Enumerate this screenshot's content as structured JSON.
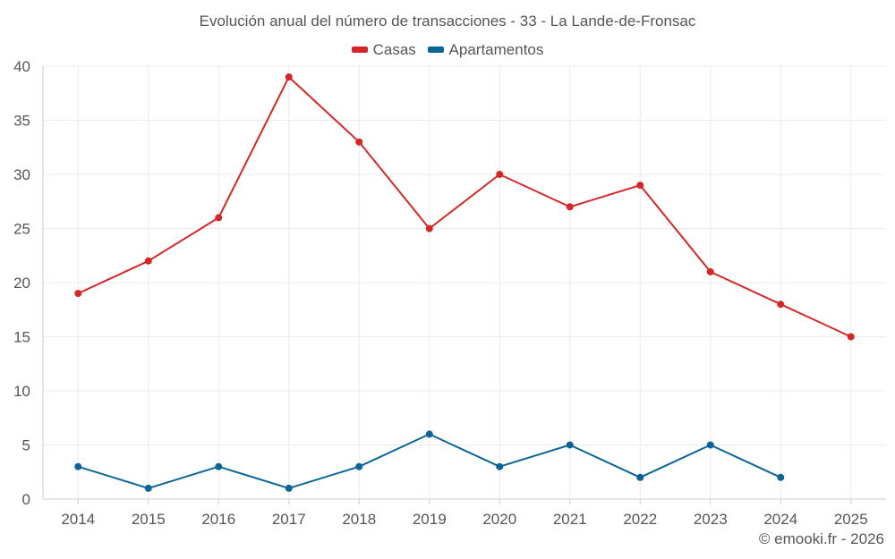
{
  "chart_data": {
    "type": "line",
    "title": "Evolución anual del número de transacciones - 33 - La Lande-de-Fronsac",
    "categories": [
      "2014",
      "2015",
      "2016",
      "2017",
      "2018",
      "2019",
      "2020",
      "2021",
      "2022",
      "2023",
      "2024",
      "2025"
    ],
    "series": [
      {
        "name": "Casas",
        "color": "#d62728",
        "values": [
          19,
          22,
          26,
          39,
          33,
          25,
          30,
          27,
          29,
          21,
          18,
          15
        ]
      },
      {
        "name": "Apartamentos",
        "color": "#0d6497",
        "values": [
          3,
          1,
          3,
          1,
          3,
          6,
          3,
          5,
          2,
          5,
          2,
          null
        ]
      }
    ],
    "xlabel": "",
    "ylabel": "",
    "ylim": [
      0,
      40
    ],
    "yticks": [
      "0",
      "5",
      "10",
      "15",
      "20",
      "25",
      "30",
      "35",
      "40"
    ],
    "grid": true,
    "legend_position": "top-center"
  },
  "credit": "© emooki.fr - 2026"
}
